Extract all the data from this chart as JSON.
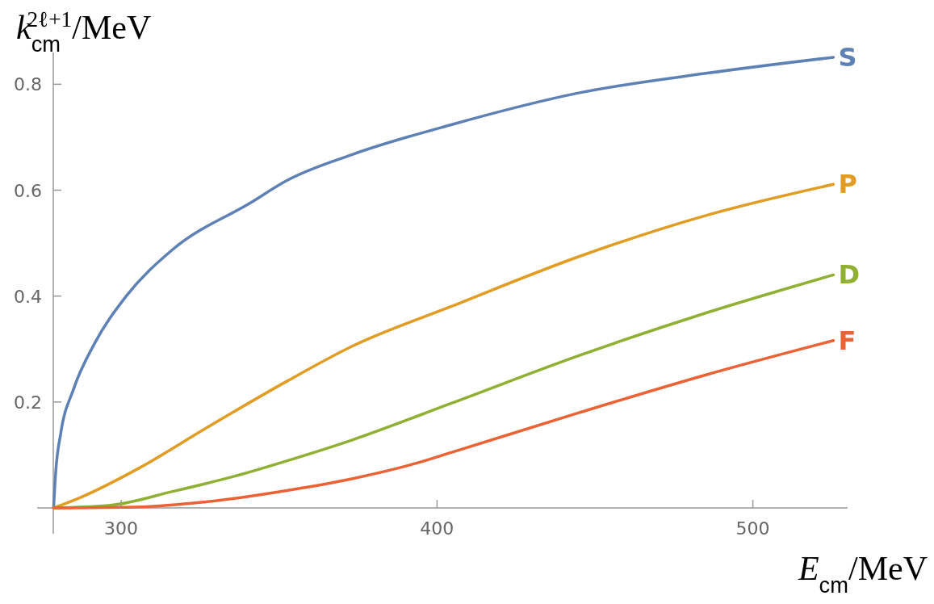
{
  "chart_data": {
    "type": "line",
    "xlabel": "E$_{cm}$/MeV",
    "ylabel": "k$_{cm}$$^{2ℓ+1}$/MeV",
    "xlim": [
      278.5,
      530
    ],
    "ylim": [
      0,
      0.86
    ],
    "xticks": [
      300,
      400,
      500
    ],
    "yticks": [
      {
        "value": 0,
        "label": null
      },
      0.2,
      0.4,
      0.6,
      0.8
    ],
    "grid": false,
    "legend": false,
    "marker": "none",
    "line_style": "solid",
    "series": [
      {
        "name": "S",
        "color": "#5e81b5",
        "x": [
          278.6,
          279.3,
          280.9,
          284.9,
          291.7,
          301.6,
          316.3,
          340.9,
          352.7,
          373.0,
          404.7,
          445.1,
          485.6,
          525.5
        ],
        "values": [
          0,
          0.07,
          0.142,
          0.224,
          0.312,
          0.4,
          0.488,
          0.576,
          0.619,
          0.667,
          0.724,
          0.784,
          0.821,
          0.851
        ]
      },
      {
        "name": "P",
        "color": "#e19c24",
        "x": [
          278.6,
          286.8,
          306.5,
          326.1,
          352.7,
          373.0,
          404.7,
          445.1,
          485.6,
          525.5
        ],
        "values": [
          0,
          0.019,
          0.078,
          0.148,
          0.24,
          0.305,
          0.381,
          0.475,
          0.553,
          0.611
        ]
      },
      {
        "name": "D",
        "color": "#8fb032",
        "x": [
          278.6,
          296.7,
          316.3,
          336.0,
          353.6,
          373.0,
          404.7,
          445.1,
          485.6,
          525.5
        ],
        "values": [
          0,
          0.005,
          0.031,
          0.06,
          0.091,
          0.128,
          0.198,
          0.288,
          0.369,
          0.44
        ]
      },
      {
        "name": "F",
        "color": "#eb6235",
        "x": [
          278.6,
          306.5,
          326.1,
          353.6,
          373.0,
          393.2,
          404.7,
          445.1,
          485.6,
          525.5
        ],
        "values": [
          0,
          0.002,
          0.011,
          0.034,
          0.055,
          0.084,
          0.105,
          0.18,
          0.252,
          0.316
        ]
      }
    ]
  }
}
